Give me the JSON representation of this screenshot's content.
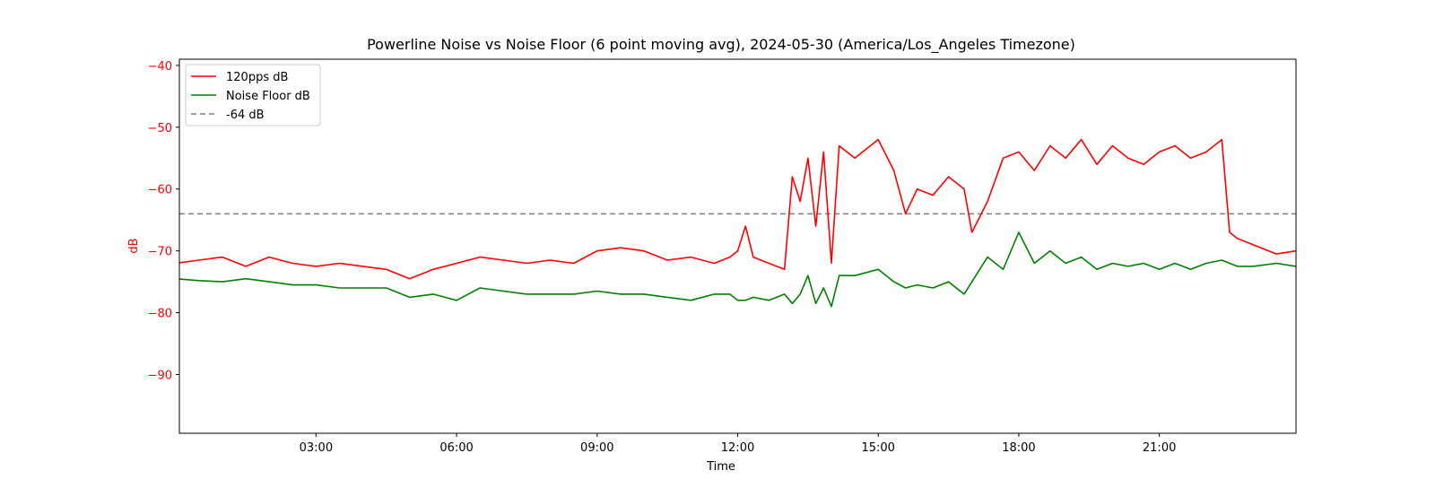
{
  "chart_data": {
    "type": "line",
    "title": "Powerline Noise vs Noise Floor (6 point moving avg), 2024-05-30 (America/Los_Angeles Timezone)",
    "xlabel": "Time",
    "ylabel": "dB",
    "xlim": [
      "00:05",
      "23:55"
    ],
    "ylim": [
      -99.5,
      -39
    ],
    "x_ticks": [
      "03:00",
      "06:00",
      "09:00",
      "12:00",
      "15:00",
      "18:00",
      "21:00"
    ],
    "y_ticks": [
      -40,
      -50,
      -60,
      -70,
      -80,
      -90
    ],
    "grid": false,
    "legend_position": "top-left",
    "x": [
      "00:00",
      "00:30",
      "01:00",
      "01:30",
      "02:00",
      "02:30",
      "03:00",
      "03:30",
      "04:00",
      "04:30",
      "05:00",
      "05:30",
      "06:00",
      "06:30",
      "07:00",
      "07:30",
      "08:00",
      "08:30",
      "09:00",
      "09:30",
      "10:00",
      "10:30",
      "11:00",
      "11:30",
      "11:50",
      "12:00",
      "12:10",
      "12:20",
      "12:40",
      "13:00",
      "13:10",
      "13:20",
      "13:30",
      "13:40",
      "13:50",
      "14:00",
      "14:10",
      "14:30",
      "15:00",
      "15:20",
      "15:35",
      "15:50",
      "16:10",
      "16:30",
      "16:50",
      "17:00",
      "17:20",
      "17:40",
      "18:00",
      "18:20",
      "18:40",
      "19:00",
      "19:20",
      "19:40",
      "20:00",
      "20:20",
      "20:40",
      "21:00",
      "21:20",
      "21:40",
      "22:00",
      "22:20",
      "22:30",
      "22:40",
      "23:00",
      "23:30",
      "23:55"
    ],
    "series": [
      {
        "name": "120pps dB",
        "color": "#ff0000",
        "values": [
          -72,
          -71.5,
          -71,
          -72.5,
          -71,
          -72,
          -72.5,
          -72,
          -72.5,
          -73,
          -74.5,
          -73,
          -72,
          -71,
          -71.5,
          -72,
          -71.5,
          -72,
          -70,
          -69.5,
          -70,
          -71.5,
          -71,
          -72,
          -71,
          -70,
          -66,
          -71,
          -72,
          -73,
          -58,
          -62,
          -55,
          -66,
          -54,
          -72,
          -53,
          -55,
          -52,
          -57,
          -64,
          -60,
          -61,
          -58,
          -60,
          -67,
          -62,
          -55,
          -54,
          -57,
          -53,
          -55,
          -52,
          -56,
          -53,
          -55,
          -56,
          -54,
          -53,
          -55,
          -54,
          -52,
          -67,
          -68,
          -69,
          -70.5,
          -70
        ]
      },
      {
        "name": "Noise Floor dB",
        "color": "#008000",
        "values": [
          -74.5,
          -74.8,
          -75,
          -74.5,
          -75,
          -75.5,
          -75.5,
          -76,
          -76,
          -76,
          -77.5,
          -77,
          -78,
          -76,
          -76.5,
          -77,
          -77,
          -77,
          -76.5,
          -77,
          -77,
          -77.5,
          -78,
          -77,
          -77,
          -78,
          -78,
          -77.5,
          -78,
          -77,
          -78.5,
          -77,
          -74,
          -78.5,
          -76,
          -79,
          -74,
          -74,
          -73,
          -75,
          -76,
          -75.5,
          -76,
          -75,
          -77,
          -75,
          -71,
          -73,
          -67,
          -72,
          -70,
          -72,
          -71,
          -73,
          -72,
          -72.5,
          -72,
          -73,
          -72,
          -73,
          -72,
          -71.5,
          -72,
          -72.5,
          -72.5,
          -72,
          -72.5
        ]
      }
    ],
    "reference_line": {
      "name": "-64 dB",
      "y": -64,
      "color": "#808080",
      "style": "dashed"
    },
    "axis_color": "#ff0000"
  }
}
